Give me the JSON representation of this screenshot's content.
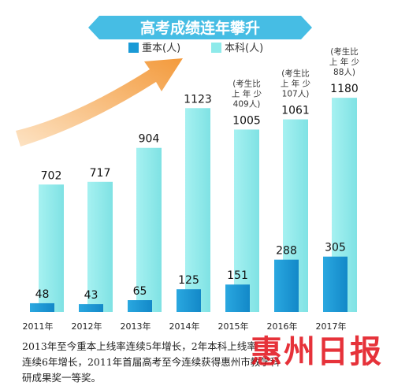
{
  "chart_data": {
    "type": "bar",
    "title": "高考成绩连年攀升",
    "categories": [
      "2011年",
      "2012年",
      "2013年",
      "2014年",
      "2015年",
      "2016年",
      "2017年"
    ],
    "series": [
      {
        "name": "重本(人)",
        "color": "#1a9ad6",
        "values": [
          48,
          43,
          65,
          125,
          151,
          288,
          305
        ]
      },
      {
        "name": "本科(人)",
        "color": "#8eeaea",
        "values": [
          702,
          717,
          904,
          1123,
          1005,
          1061,
          1180
        ]
      }
    ],
    "ylim": [
      0,
      1250
    ],
    "grid": false,
    "legend": "top",
    "annotations": [
      {
        "category": "2015年",
        "lines": [
          "(考生比",
          "上 年 少",
          "409人)"
        ]
      },
      {
        "category": "2016年",
        "lines": [
          "(考生比",
          "上 年 少",
          "107人)"
        ]
      },
      {
        "category": "2017年",
        "lines": [
          "(考生比",
          "上 年 少",
          "88人)"
        ]
      }
    ]
  },
  "caption": {
    "line1": "2013年至今重本上线率连续5年增长，",
    "line1_obscured": "2年本科上线率",
    "line2": "连续6年增长，2011年首届高考至今连续",
    "line2_obscured": "获得惠州市教学科",
    "line3": "研成果奖一等奖。"
  },
  "watermark": "惠州日报",
  "colors": {
    "title_banner": "#46bde4",
    "arrow": "#f5a04a",
    "dark_bar": "#1a9ad6",
    "light_bar": "#8eeaea"
  }
}
